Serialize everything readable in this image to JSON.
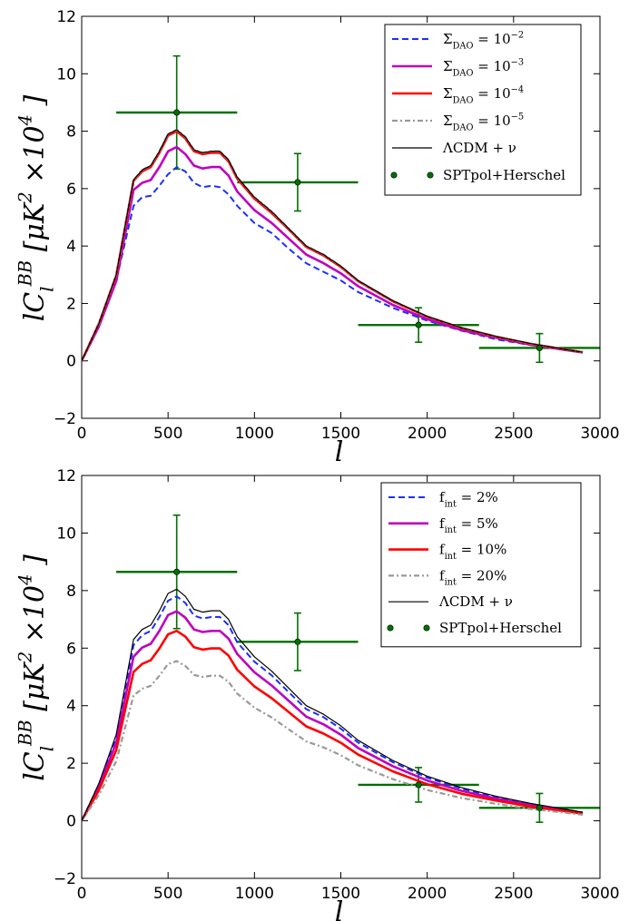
{
  "chart_data": [
    {
      "type": "line",
      "xlim": [
        0,
        3000
      ],
      "ylim": [
        -2,
        12
      ],
      "xticks": [
        0,
        500,
        1000,
        1500,
        2000,
        2500,
        3000
      ],
      "yticks": [
        {
          "value": -2,
          "label": "−2"
        },
        0,
        2,
        4,
        6,
        8,
        10,
        12
      ],
      "xlabel": "l",
      "ylabel": [
        {
          "t": "lC"
        },
        {
          "t": "l",
          "s": "sub"
        },
        {
          "t": "BB",
          "s": "sup"
        },
        {
          "t": " [μK"
        },
        {
          "t": "2",
          "s": "sup"
        },
        {
          "t": " ×10"
        },
        {
          "t": "4",
          "s": "sup"
        },
        {
          "t": " ]"
        }
      ],
      "legend": "upper right",
      "x": [
        0,
        100,
        200,
        300,
        350,
        400,
        450,
        500,
        550,
        600,
        650,
        700,
        750,
        800,
        850,
        900,
        1000,
        1100,
        1200,
        1300,
        1400,
        1500,
        1600,
        1800,
        2000,
        2200,
        2400,
        2600,
        2800,
        2900
      ],
      "series": [
        {
          "name": [
            {
              "t": "Σ"
            },
            {
              "t": "DAO",
              "s": "sub"
            },
            {
              "t": " = 10"
            },
            {
              "t": "−2",
              "s": "sup"
            }
          ],
          "color": "#1a2fff",
          "style": "dashed",
          "values": [
            0,
            1.2,
            2.8,
            5.4,
            5.7,
            5.75,
            6.1,
            6.5,
            6.75,
            6.6,
            6.2,
            6.05,
            6.1,
            6.05,
            5.8,
            5.4,
            4.8,
            4.45,
            3.9,
            3.4,
            3.1,
            2.8,
            2.4,
            1.85,
            1.4,
            1.05,
            0.75,
            0.55,
            0.38,
            0.3
          ]
        },
        {
          "name": [
            {
              "t": "Σ"
            },
            {
              "t": "DAO",
              "s": "sub"
            },
            {
              "t": " = 10"
            },
            {
              "t": "−3",
              "s": "sup"
            }
          ],
          "color": "#bf00bf",
          "style": "solid",
          "values": [
            0,
            1.2,
            2.78,
            5.95,
            6.2,
            6.3,
            6.75,
            7.3,
            7.45,
            7.2,
            6.8,
            6.7,
            6.75,
            6.75,
            6.45,
            5.9,
            5.25,
            4.8,
            4.25,
            3.7,
            3.4,
            3.05,
            2.6,
            1.95,
            1.45,
            1.07,
            0.8,
            0.56,
            0.38,
            0.29
          ]
        },
        {
          "name": [
            {
              "t": "Σ"
            },
            {
              "t": "DAO",
              "s": "sub"
            },
            {
              "t": " = 10"
            },
            {
              "t": "−4",
              "s": "sup"
            }
          ],
          "color": "#ff0000",
          "style": "solid",
          "values": [
            0,
            1.3,
            2.98,
            6.27,
            6.6,
            6.75,
            7.25,
            7.85,
            8.0,
            7.75,
            7.3,
            7.2,
            7.25,
            7.25,
            6.95,
            6.35,
            5.65,
            5.15,
            4.57,
            3.97,
            3.67,
            3.27,
            2.78,
            2.08,
            1.54,
            1.14,
            0.84,
            0.59,
            0.4,
            0.3
          ]
        },
        {
          "name": [
            {
              "t": "Σ"
            },
            {
              "t": "DAO",
              "s": "sub"
            },
            {
              "t": " = 10"
            },
            {
              "t": "−5",
              "s": "sup"
            }
          ],
          "color": "#999999",
          "style": "dashdot",
          "values": [
            0,
            1.3,
            3.0,
            6.3,
            6.65,
            6.8,
            7.3,
            7.9,
            8.05,
            7.8,
            7.35,
            7.25,
            7.3,
            7.3,
            7.0,
            6.4,
            5.7,
            5.2,
            4.6,
            4.0,
            3.7,
            3.3,
            2.8,
            2.1,
            1.55,
            1.15,
            0.85,
            0.6,
            0.4,
            0.3
          ]
        },
        {
          "name": [
            {
              "t": "ΛCDM + ν"
            }
          ],
          "color": "#000000",
          "style": "thin",
          "values": [
            0,
            1.3,
            3.0,
            6.3,
            6.65,
            6.8,
            7.3,
            7.9,
            8.05,
            7.8,
            7.35,
            7.25,
            7.3,
            7.3,
            7.0,
            6.4,
            5.7,
            5.2,
            4.6,
            4.0,
            3.7,
            3.3,
            2.8,
            2.1,
            1.55,
            1.15,
            0.85,
            0.6,
            0.4,
            0.3
          ]
        }
      ],
      "points": {
        "name": [
          {
            "t": "SPTpol+Herschel"
          }
        ],
        "color": "#007000",
        "x": [
          550,
          1250,
          1950,
          2650
        ],
        "y": [
          8.65,
          6.22,
          1.25,
          0.45
        ],
        "xerr": [
          350,
          350,
          350,
          350
        ],
        "yerr": [
          1.97,
          1.0,
          0.6,
          0.5
        ]
      }
    },
    {
      "type": "line",
      "xlim": [
        0,
        3000
      ],
      "ylim": [
        -2,
        12
      ],
      "xticks": [
        0,
        500,
        1000,
        1500,
        2000,
        2500,
        3000
      ],
      "yticks": [
        {
          "value": -2,
          "label": "−2"
        },
        0,
        2,
        4,
        6,
        8,
        10,
        12
      ],
      "xlabel": "l",
      "ylabel": [
        {
          "t": "lC"
        },
        {
          "t": "l",
          "s": "sub"
        },
        {
          "t": "BB",
          "s": "sup"
        },
        {
          "t": " [μK"
        },
        {
          "t": "2",
          "s": "sup"
        },
        {
          "t": " ×10"
        },
        {
          "t": "4",
          "s": "sup"
        },
        {
          "t": " ]"
        }
      ],
      "legend": "upper right",
      "x": [
        0,
        100,
        200,
        300,
        350,
        400,
        450,
        500,
        550,
        600,
        650,
        700,
        750,
        800,
        850,
        900,
        1000,
        1100,
        1200,
        1300,
        1400,
        1500,
        1600,
        1800,
        2000,
        2200,
        2400,
        2600,
        2800,
        2900
      ],
      "series": [
        {
          "name": [
            {
              "t": "f"
            },
            {
              "t": "int",
              "s": "sub"
            },
            {
              "t": " = 2%"
            }
          ],
          "color": "#1a2fff",
          "style": "dashed",
          "values": [
            0,
            1.27,
            2.92,
            6.1,
            6.45,
            6.6,
            7.08,
            7.65,
            7.8,
            7.57,
            7.13,
            7.03,
            7.08,
            7.08,
            6.8,
            6.2,
            5.53,
            5.05,
            4.46,
            3.88,
            3.6,
            3.2,
            2.72,
            2.04,
            1.5,
            1.12,
            0.82,
            0.58,
            0.39,
            0.29
          ]
        },
        {
          "name": [
            {
              "t": "f"
            },
            {
              "t": "int",
              "s": "sub"
            },
            {
              "t": " = 5%"
            }
          ],
          "color": "#bf00bf",
          "style": "solid",
          "values": [
            0,
            1.18,
            2.72,
            5.7,
            6.02,
            6.15,
            6.6,
            7.15,
            7.28,
            7.06,
            6.65,
            6.56,
            6.6,
            6.6,
            6.33,
            5.8,
            5.16,
            4.7,
            4.16,
            3.62,
            3.35,
            2.99,
            2.53,
            1.9,
            1.4,
            1.04,
            0.77,
            0.54,
            0.36,
            0.27
          ]
        },
        {
          "name": [
            {
              "t": "f"
            },
            {
              "t": "int",
              "s": "sub"
            },
            {
              "t": " = 10%"
            }
          ],
          "color": "#ff0000",
          "style": "solid",
          "values": [
            0,
            1.07,
            2.46,
            5.17,
            5.45,
            5.58,
            5.99,
            6.48,
            6.6,
            6.4,
            6.03,
            5.95,
            5.99,
            5.99,
            5.74,
            5.25,
            4.67,
            4.26,
            3.77,
            3.28,
            3.03,
            2.71,
            2.3,
            1.72,
            1.27,
            0.94,
            0.7,
            0.49,
            0.33,
            0.25
          ]
        },
        {
          "name": [
            {
              "t": "f"
            },
            {
              "t": "int",
              "s": "sub"
            },
            {
              "t": " = 20%"
            }
          ],
          "color": "#999999",
          "style": "dashdot",
          "values": [
            0,
            0.9,
            2.07,
            4.35,
            4.59,
            4.69,
            5.04,
            5.45,
            5.55,
            5.38,
            5.07,
            5.0,
            5.04,
            5.04,
            4.83,
            4.42,
            3.93,
            3.59,
            3.17,
            2.76,
            2.55,
            2.28,
            1.93,
            1.45,
            1.07,
            0.79,
            0.59,
            0.41,
            0.28,
            0.21
          ]
        },
        {
          "name": [
            {
              "t": "ΛCDM + ν"
            }
          ],
          "color": "#000000",
          "style": "thin",
          "values": [
            0,
            1.3,
            3.0,
            6.3,
            6.65,
            6.8,
            7.3,
            7.9,
            8.05,
            7.8,
            7.35,
            7.25,
            7.3,
            7.3,
            7.0,
            6.4,
            5.7,
            5.2,
            4.6,
            4.0,
            3.7,
            3.3,
            2.8,
            2.1,
            1.55,
            1.15,
            0.85,
            0.6,
            0.4,
            0.3
          ]
        }
      ],
      "points": {
        "name": [
          {
            "t": "SPTpol+Herschel"
          }
        ],
        "color": "#007000",
        "x": [
          550,
          1250,
          1950,
          2650
        ],
        "y": [
          8.65,
          6.22,
          1.25,
          0.45
        ],
        "xerr": [
          350,
          350,
          350,
          350
        ],
        "yerr": [
          1.97,
          1.0,
          0.6,
          0.5
        ]
      }
    }
  ]
}
